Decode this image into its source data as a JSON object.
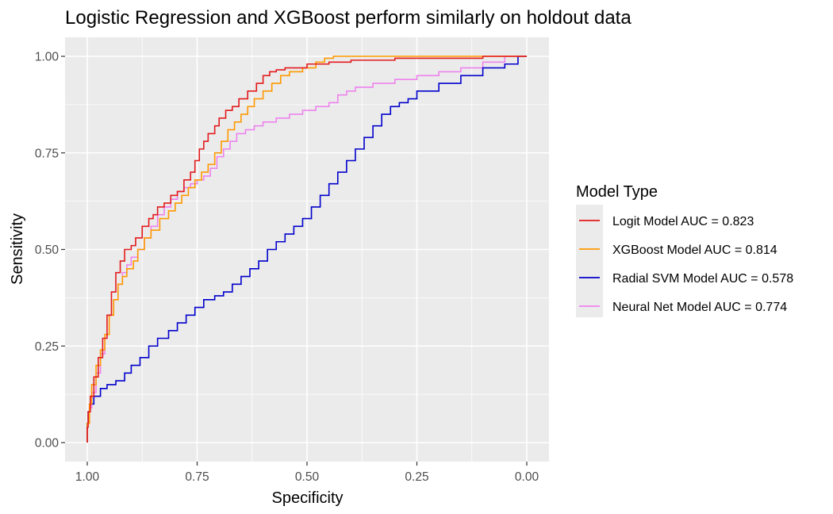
{
  "chart_data": {
    "type": "line",
    "title": "Logistic Regression and XGBoost perform similarly on holdout data",
    "xlabel": "Specificity",
    "ylabel": "Sensitivity",
    "x_reversed": true,
    "xlim": [
      1.0,
      0.0
    ],
    "ylim": [
      0.0,
      1.0
    ],
    "x_ticks": [
      1.0,
      0.75,
      0.5,
      0.25,
      0.0
    ],
    "x_tick_labels": [
      "1.00",
      "0.75",
      "0.50",
      "0.25",
      "0.00"
    ],
    "y_ticks": [
      0.0,
      0.25,
      0.5,
      0.75,
      1.0
    ],
    "y_tick_labels": [
      "0.00",
      "0.25",
      "0.50",
      "0.75",
      "1.00"
    ],
    "grid": true,
    "panel_background": "#ebebeb",
    "legend": {
      "title": "Model Type",
      "position": "right"
    },
    "series": [
      {
        "name": "Logit Model AUC = 0.823",
        "color": "#e41a1c",
        "points": [
          [
            1.0,
            0.0
          ],
          [
            0.998,
            0.04
          ],
          [
            0.993,
            0.08
          ],
          [
            0.985,
            0.12
          ],
          [
            0.975,
            0.17
          ],
          [
            0.965,
            0.22
          ],
          [
            0.955,
            0.27
          ],
          [
            0.945,
            0.33
          ],
          [
            0.935,
            0.39
          ],
          [
            0.925,
            0.44
          ],
          [
            0.915,
            0.47
          ],
          [
            0.9,
            0.5
          ],
          [
            0.89,
            0.51
          ],
          [
            0.875,
            0.53
          ],
          [
            0.86,
            0.56
          ],
          [
            0.85,
            0.58
          ],
          [
            0.84,
            0.59
          ],
          [
            0.825,
            0.61
          ],
          [
            0.81,
            0.62
          ],
          [
            0.795,
            0.64
          ],
          [
            0.78,
            0.65
          ],
          [
            0.765,
            0.68
          ],
          [
            0.755,
            0.7
          ],
          [
            0.745,
            0.73
          ],
          [
            0.735,
            0.76
          ],
          [
            0.725,
            0.78
          ],
          [
            0.71,
            0.8
          ],
          [
            0.7,
            0.82
          ],
          [
            0.685,
            0.84
          ],
          [
            0.67,
            0.86
          ],
          [
            0.655,
            0.87
          ],
          [
            0.635,
            0.89
          ],
          [
            0.615,
            0.91
          ],
          [
            0.6,
            0.93
          ],
          [
            0.585,
            0.95
          ],
          [
            0.57,
            0.96
          ],
          [
            0.55,
            0.965
          ],
          [
            0.5,
            0.97
          ],
          [
            0.45,
            0.98
          ],
          [
            0.4,
            0.985
          ],
          [
            0.3,
            0.99
          ],
          [
            0.2,
            0.995
          ],
          [
            0.1,
            0.995
          ],
          [
            0.0,
            1.0
          ]
        ]
      },
      {
        "name": "XGBoost Model AUC = 0.814",
        "color": "#ff9900",
        "points": [
          [
            1.0,
            0.0
          ],
          [
            0.995,
            0.05
          ],
          [
            0.99,
            0.1
          ],
          [
            0.98,
            0.15
          ],
          [
            0.97,
            0.2
          ],
          [
            0.96,
            0.24
          ],
          [
            0.95,
            0.28
          ],
          [
            0.94,
            0.33
          ],
          [
            0.93,
            0.37
          ],
          [
            0.92,
            0.41
          ],
          [
            0.91,
            0.43
          ],
          [
            0.895,
            0.45
          ],
          [
            0.885,
            0.47
          ],
          [
            0.87,
            0.5
          ],
          [
            0.855,
            0.53
          ],
          [
            0.835,
            0.55
          ],
          [
            0.815,
            0.58
          ],
          [
            0.8,
            0.6
          ],
          [
            0.785,
            0.62
          ],
          [
            0.77,
            0.64
          ],
          [
            0.755,
            0.66
          ],
          [
            0.74,
            0.68
          ],
          [
            0.725,
            0.7
          ],
          [
            0.71,
            0.72
          ],
          [
            0.695,
            0.75
          ],
          [
            0.68,
            0.78
          ],
          [
            0.665,
            0.81
          ],
          [
            0.65,
            0.83
          ],
          [
            0.635,
            0.85
          ],
          [
            0.62,
            0.87
          ],
          [
            0.6,
            0.89
          ],
          [
            0.58,
            0.91
          ],
          [
            0.56,
            0.93
          ],
          [
            0.54,
            0.95
          ],
          [
            0.51,
            0.96
          ],
          [
            0.48,
            0.97
          ],
          [
            0.46,
            0.985
          ],
          [
            0.44,
            0.995
          ],
          [
            0.42,
            1.0
          ],
          [
            0.3,
            1.0
          ],
          [
            0.0,
            1.0
          ]
        ]
      },
      {
        "name": "Radial SVM Model AUC = 0.578",
        "color": "#0000cc",
        "points": [
          [
            1.0,
            0.0
          ],
          [
            0.998,
            0.05
          ],
          [
            0.995,
            0.08
          ],
          [
            0.985,
            0.1
          ],
          [
            0.97,
            0.12
          ],
          [
            0.955,
            0.14
          ],
          [
            0.935,
            0.15
          ],
          [
            0.915,
            0.16
          ],
          [
            0.9,
            0.18
          ],
          [
            0.88,
            0.2
          ],
          [
            0.86,
            0.22
          ],
          [
            0.84,
            0.25
          ],
          [
            0.815,
            0.27
          ],
          [
            0.795,
            0.29
          ],
          [
            0.775,
            0.31
          ],
          [
            0.755,
            0.33
          ],
          [
            0.735,
            0.35
          ],
          [
            0.71,
            0.37
          ],
          [
            0.69,
            0.38
          ],
          [
            0.67,
            0.39
          ],
          [
            0.65,
            0.41
          ],
          [
            0.63,
            0.43
          ],
          [
            0.61,
            0.45
          ],
          [
            0.59,
            0.47
          ],
          [
            0.57,
            0.5
          ],
          [
            0.55,
            0.52
          ],
          [
            0.53,
            0.54
          ],
          [
            0.51,
            0.56
          ],
          [
            0.49,
            0.58
          ],
          [
            0.47,
            0.61
          ],
          [
            0.45,
            0.64
          ],
          [
            0.43,
            0.67
          ],
          [
            0.41,
            0.7
          ],
          [
            0.39,
            0.73
          ],
          [
            0.37,
            0.76
          ],
          [
            0.35,
            0.79
          ],
          [
            0.33,
            0.82
          ],
          [
            0.31,
            0.85
          ],
          [
            0.29,
            0.87
          ],
          [
            0.27,
            0.88
          ],
          [
            0.25,
            0.89
          ],
          [
            0.2,
            0.91
          ],
          [
            0.15,
            0.93
          ],
          [
            0.1,
            0.95
          ],
          [
            0.05,
            0.97
          ],
          [
            0.02,
            0.98
          ],
          [
            0.0,
            1.0
          ]
        ]
      },
      {
        "name": "Neural Net Model AUC = 0.774",
        "color": "#ee82ee",
        "points": [
          [
            1.0,
            0.0
          ],
          [
            0.995,
            0.05
          ],
          [
            0.99,
            0.09
          ],
          [
            0.98,
            0.13
          ],
          [
            0.97,
            0.18
          ],
          [
            0.96,
            0.23
          ],
          [
            0.95,
            0.28
          ],
          [
            0.94,
            0.33
          ],
          [
            0.93,
            0.37
          ],
          [
            0.92,
            0.41
          ],
          [
            0.91,
            0.44
          ],
          [
            0.9,
            0.46
          ],
          [
            0.885,
            0.48
          ],
          [
            0.87,
            0.5
          ],
          [
            0.855,
            0.53
          ],
          [
            0.84,
            0.56
          ],
          [
            0.825,
            0.59
          ],
          [
            0.81,
            0.61
          ],
          [
            0.795,
            0.63
          ],
          [
            0.78,
            0.65
          ],
          [
            0.765,
            0.66
          ],
          [
            0.75,
            0.67
          ],
          [
            0.735,
            0.68
          ],
          [
            0.72,
            0.69
          ],
          [
            0.705,
            0.71
          ],
          [
            0.69,
            0.74
          ],
          [
            0.675,
            0.76
          ],
          [
            0.66,
            0.78
          ],
          [
            0.64,
            0.8
          ],
          [
            0.62,
            0.81
          ],
          [
            0.6,
            0.82
          ],
          [
            0.57,
            0.83
          ],
          [
            0.54,
            0.84
          ],
          [
            0.51,
            0.85
          ],
          [
            0.48,
            0.86
          ],
          [
            0.45,
            0.87
          ],
          [
            0.43,
            0.88
          ],
          [
            0.41,
            0.9
          ],
          [
            0.39,
            0.91
          ],
          [
            0.35,
            0.92
          ],
          [
            0.3,
            0.93
          ],
          [
            0.25,
            0.94
          ],
          [
            0.2,
            0.95
          ],
          [
            0.15,
            0.96
          ],
          [
            0.1,
            0.97
          ],
          [
            0.05,
            0.985
          ],
          [
            0.0,
            1.0
          ]
        ]
      }
    ]
  }
}
